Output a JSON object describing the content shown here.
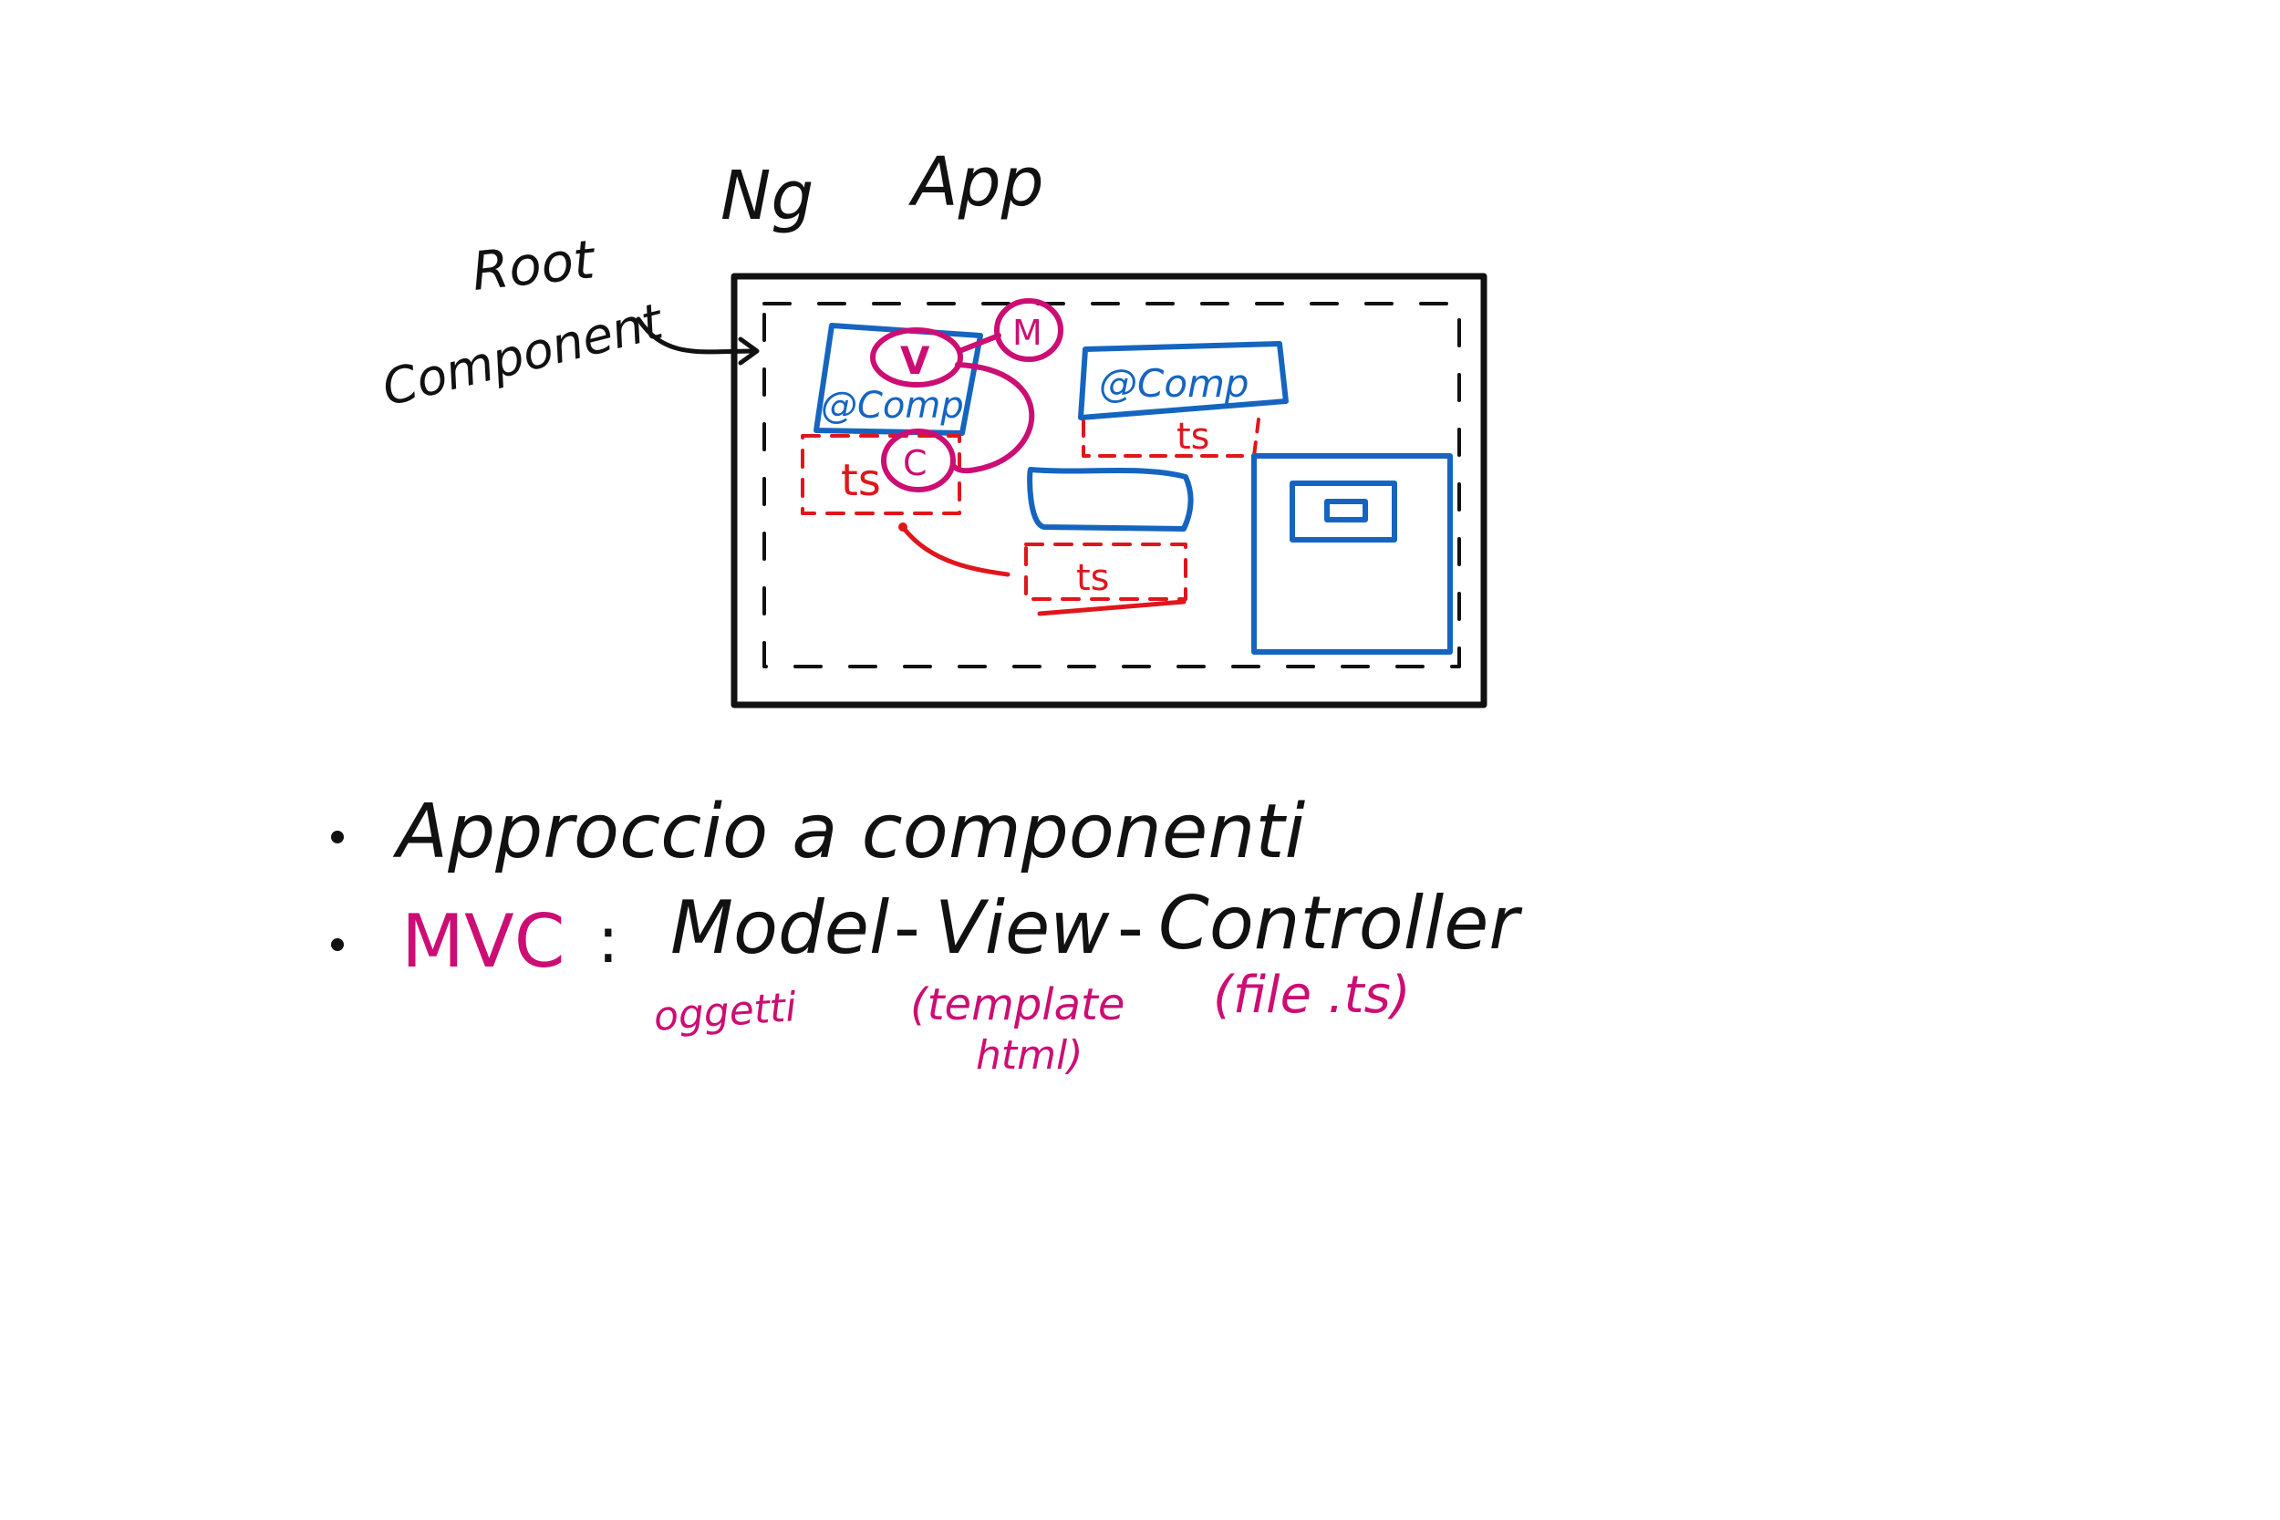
{
  "diagram": {
    "title": {
      "logo_text": "Ng",
      "app_text": "App"
    },
    "root_label": {
      "line1": "Root",
      "line2": "Component"
    },
    "components": [
      {
        "label": "@Comp",
        "ts_label": "ts",
        "view_marker": "V",
        "model_marker": "M",
        "controller_marker": "C"
      },
      {
        "label": "@Comp",
        "ts_label": "ts"
      },
      {
        "ts_label": "ts"
      }
    ],
    "bullets": [
      {
        "text": "Approccio a componenti"
      },
      {
        "acronym": "MVC",
        "separator": ":",
        "model": "Model",
        "view": "View",
        "controller": "Controller",
        "dash": "-",
        "notes": {
          "model": "oggetti",
          "view_line1": "(template",
          "view_line2": "html)",
          "controller": "(file .ts)"
        }
      }
    ],
    "colors": {
      "ink": "#111111",
      "component": "#1565c0",
      "typescript": "#e0161d",
      "mvc": "#cc0e74"
    }
  }
}
